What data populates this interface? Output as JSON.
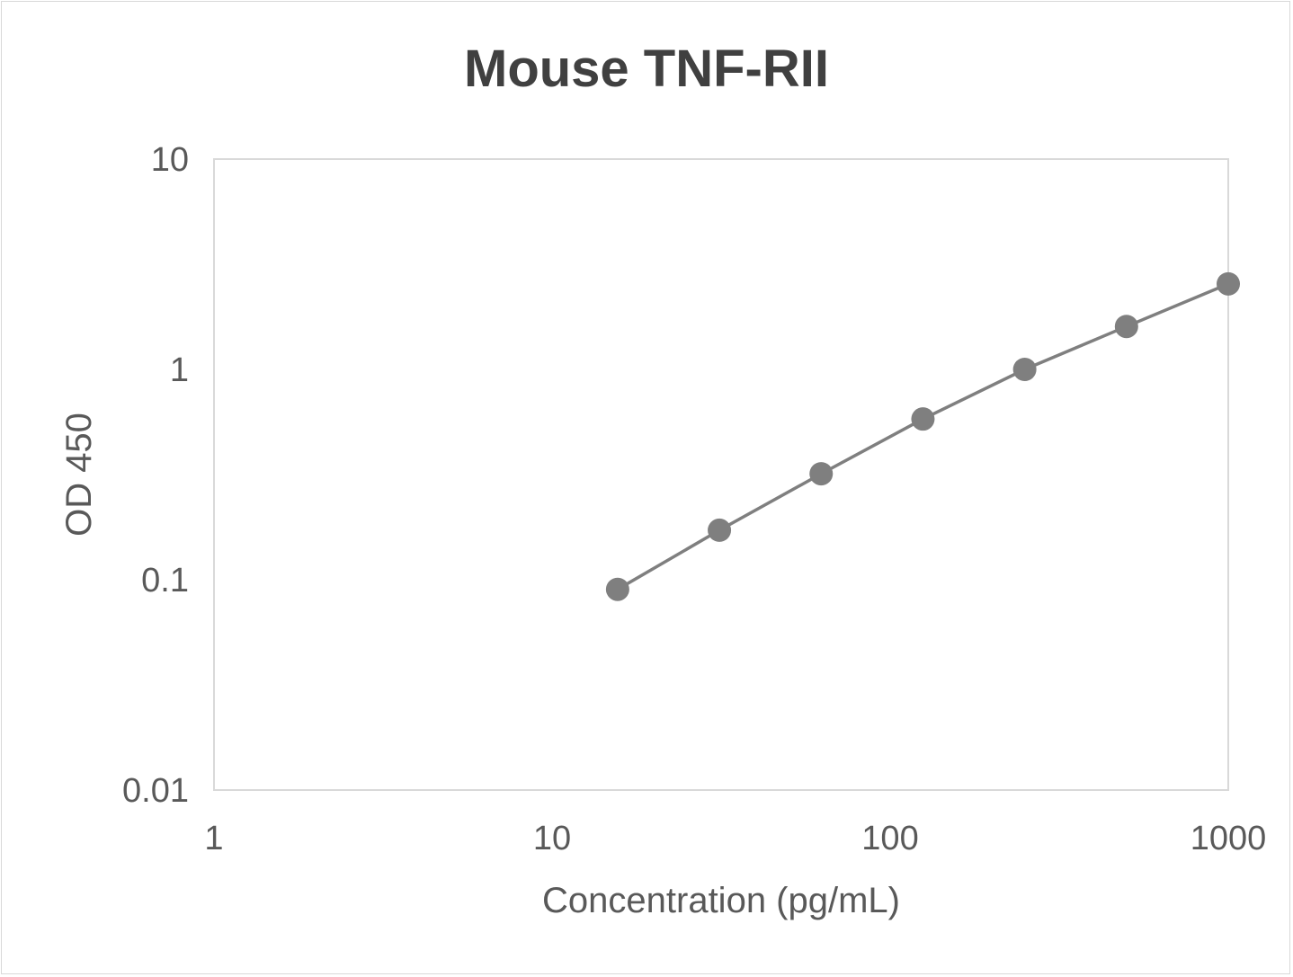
{
  "chart_data": {
    "type": "line",
    "title": "Mouse TNF-RII",
    "xlabel": "Concentration (pg/mL)",
    "ylabel": "OD 450",
    "x_scale": "log",
    "y_scale": "log",
    "xlim": [
      1,
      1000
    ],
    "ylim": [
      0.01,
      10
    ],
    "x_ticks": [
      "1",
      "10",
      "100",
      "1000"
    ],
    "y_ticks": [
      "0.01",
      "0.1",
      "1",
      "10"
    ],
    "grid": false,
    "legend": "none",
    "series": [
      {
        "color": "#7f7f7f",
        "x": [
          15.625,
          31.25,
          62.5,
          125,
          250,
          500,
          1000
        ],
        "y": [
          0.09,
          0.172,
          0.319,
          0.581,
          1.0,
          1.6,
          2.55
        ]
      }
    ]
  }
}
